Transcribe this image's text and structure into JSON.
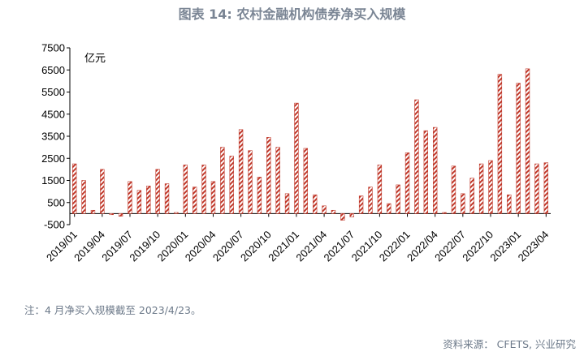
{
  "chart_data": {
    "type": "bar",
    "title": "图表 14: 农村金融机构债券净买入规模",
    "unit_label": "亿元",
    "ylim": [
      -500,
      7500
    ],
    "yticks": [
      -500,
      500,
      1500,
      2500,
      3500,
      4500,
      5500,
      6500,
      7500
    ],
    "x_tick_labels": [
      "2019/01",
      "2019/04",
      "2019/07",
      "2019/10",
      "2020/01",
      "2020/04",
      "2020/07",
      "2020/10",
      "2021/01",
      "2021/04",
      "2021/07",
      "2021/10",
      "2022/01",
      "2022/04",
      "2022/07",
      "2022/10",
      "2023/01",
      "2023/04"
    ],
    "categories": [
      "2019/01",
      "2019/02",
      "2019/03",
      "2019/04",
      "2019/05",
      "2019/06",
      "2019/07",
      "2019/08",
      "2019/09",
      "2019/10",
      "2019/11",
      "2019/12",
      "2020/01",
      "2020/02",
      "2020/03",
      "2020/04",
      "2020/05",
      "2020/06",
      "2020/07",
      "2020/08",
      "2020/09",
      "2020/10",
      "2020/11",
      "2020/12",
      "2021/01",
      "2021/02",
      "2021/03",
      "2021/04",
      "2021/05",
      "2021/06",
      "2021/07",
      "2021/08",
      "2021/09",
      "2021/10",
      "2021/11",
      "2021/12",
      "2022/01",
      "2022/02",
      "2022/03",
      "2022/04",
      "2022/05",
      "2022/06",
      "2022/07",
      "2022/08",
      "2022/09",
      "2022/10",
      "2022/11",
      "2022/12",
      "2023/01",
      "2023/02",
      "2023/03",
      "2023/04"
    ],
    "values": [
      2250,
      1500,
      150,
      2000,
      -50,
      -120,
      1450,
      1050,
      1250,
      2000,
      1350,
      50,
      2200,
      1200,
      2200,
      1450,
      3000,
      2600,
      3800,
      2850,
      1650,
      3450,
      3000,
      900,
      5000,
      2950,
      850,
      350,
      150,
      -300,
      -150,
      800,
      1200,
      2200,
      450,
      1300,
      2750,
      5150,
      3750,
      3900,
      50,
      2150,
      900,
      1600,
      2250,
      2400,
      6300,
      850,
      5900,
      6550,
      2250,
      2300
    ],
    "bar_color": "#c0392b",
    "grid": false
  },
  "note": "注：4 月净买入规模截至 2023/4/23。",
  "source": "资料来源： CFETS, 兴业研究"
}
